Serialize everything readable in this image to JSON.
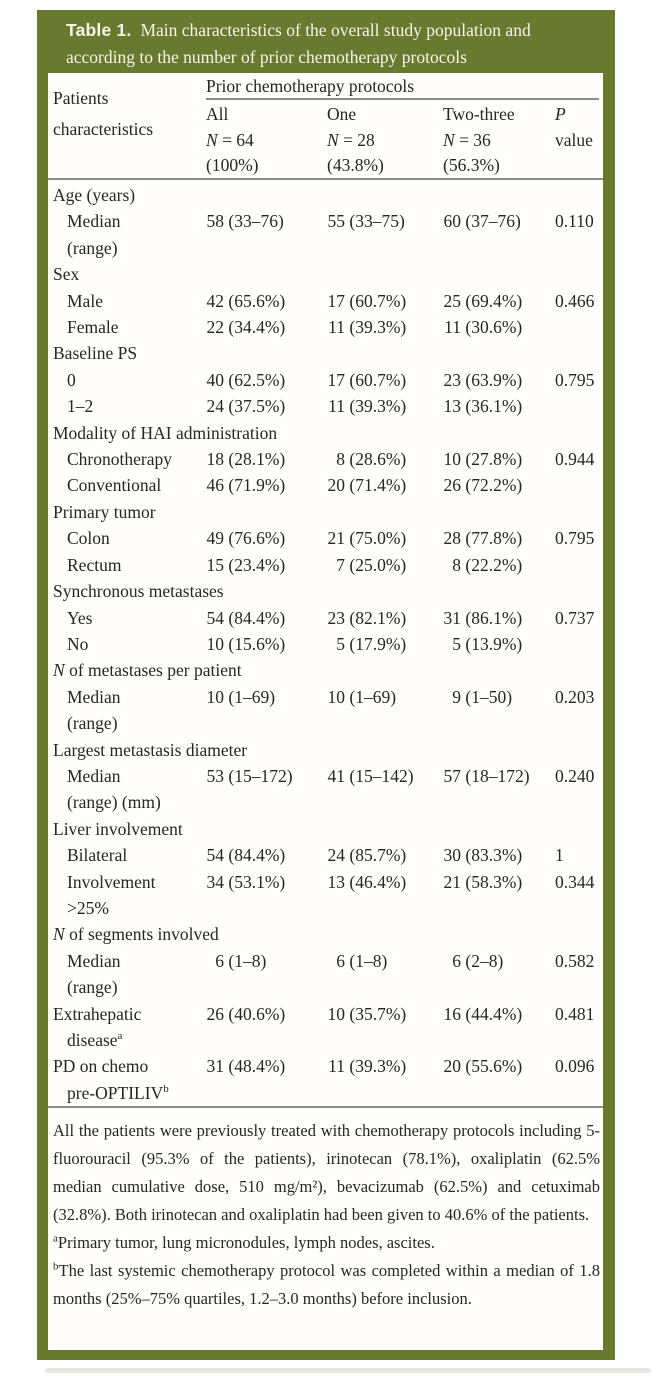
{
  "theme": {
    "header_green": "#6a7930",
    "title_text": "#f7f4e8",
    "rule_gray": "#8a8a8a",
    "body_text": "#262626",
    "artifact_gray": "#e6e6e3"
  },
  "title": {
    "tag": "Table 1.",
    "line1": "Main characteristics of the overall study population and",
    "line2": "according to the number of prior chemotherapy protocols"
  },
  "header": {
    "col1_line1": "Patients",
    "col1_line2": "characteristics",
    "group": "Prior chemotherapy protocols",
    "columns": [
      {
        "key": "all",
        "name": "All",
        "name_italic": false,
        "n_prefix": "N",
        "n_rest": "= 64",
        "pct": "(100%)"
      },
      {
        "key": "one",
        "name": "One",
        "name_italic": false,
        "n_prefix": "N",
        "n_rest": "= 28",
        "pct": "(43.8%)"
      },
      {
        "key": "two-three",
        "name": "Two-three",
        "name_italic": false,
        "n_prefix": "N",
        "n_rest": "= 36",
        "pct": "(56.3%)"
      },
      {
        "key": "p-value",
        "name": "P",
        "name_italic": true,
        "n_prefix": "",
        "n_rest": "value",
        "pct": ""
      }
    ]
  },
  "table": {
    "rows": [
      {
        "type": "section",
        "text": "Age (years)"
      },
      {
        "type": "data",
        "lines": [
          {
            "text": "Median",
            "lvl": 1
          },
          {
            "text": "(range)",
            "lvl": 1
          }
        ],
        "all": "58 (33–76)",
        "one": "55 (33–75)",
        "two_three": "60 (37–76)",
        "p": "0.110"
      },
      {
        "type": "section",
        "text": "Sex"
      },
      {
        "type": "data",
        "lines": [
          {
            "text": "Male",
            "lvl": 1
          }
        ],
        "all": "42 (65.6%)",
        "one": "17 (60.7%)",
        "two_three": "25 (69.4%)",
        "p": "0.466"
      },
      {
        "type": "data",
        "lines": [
          {
            "text": "Female",
            "lvl": 1
          }
        ],
        "all": "22 (34.4%)",
        "one": "11 (39.3%)",
        "two_three": "11 (30.6%)",
        "p": ""
      },
      {
        "type": "section",
        "text": "Baseline PS"
      },
      {
        "type": "data",
        "lines": [
          {
            "text": "0",
            "lvl": 1
          }
        ],
        "all": "40 (62.5%)",
        "one": "17 (60.7%)",
        "two_three": "23 (63.9%)",
        "p": "0.795"
      },
      {
        "type": "data",
        "lines": [
          {
            "text": "1–2",
            "lvl": 1
          }
        ],
        "all": "24 (37.5%)",
        "one": "11 (39.3%)",
        "two_three": "13 (36.1%)",
        "p": ""
      },
      {
        "type": "section",
        "text": "Modality of HAI administration"
      },
      {
        "type": "data",
        "lines": [
          {
            "text": "Chronotherapy",
            "lvl": 1
          }
        ],
        "all": "18 (28.1%)",
        "one": "8 (28.6%)",
        "two_three": "10 (27.8%)",
        "p": "0.944"
      },
      {
        "type": "data",
        "lines": [
          {
            "text": "Conventional",
            "lvl": 1
          }
        ],
        "all": "46 (71.9%)",
        "one": "20 (71.4%)",
        "two_three": "26 (72.2%)",
        "p": ""
      },
      {
        "type": "section",
        "text": "Primary tumor"
      },
      {
        "type": "data",
        "lines": [
          {
            "text": "Colon",
            "lvl": 1
          }
        ],
        "all": "49 (76.6%)",
        "one": "21 (75.0%)",
        "two_three": "28 (77.8%)",
        "p": "0.795"
      },
      {
        "type": "data",
        "lines": [
          {
            "text": "Rectum",
            "lvl": 1
          }
        ],
        "all": "15 (23.4%)",
        "one": "7 (25.0%)",
        "two_three": "8 (22.2%)",
        "p": ""
      },
      {
        "type": "section",
        "text": "Synchronous metastases"
      },
      {
        "type": "data",
        "lines": [
          {
            "text": "Yes",
            "lvl": 1
          }
        ],
        "all": "54 (84.4%)",
        "one": "23 (82.1%)",
        "two_three": "31 (86.1%)",
        "p": "0.737"
      },
      {
        "type": "data",
        "lines": [
          {
            "text": "No",
            "lvl": 1
          }
        ],
        "all": "10 (15.6%)",
        "one": "5 (17.9%)",
        "two_three": "5 (13.9%)",
        "p": ""
      },
      {
        "type": "section",
        "prefix": "N",
        "text": "of metastases per patient"
      },
      {
        "type": "data",
        "lines": [
          {
            "text": "Median",
            "lvl": 1
          },
          {
            "text": "(range)",
            "lvl": 1
          }
        ],
        "all": "10 (1–69)",
        "one": "10 (1–69)",
        "two_three": "9 (1–50)",
        "p": "0.203"
      },
      {
        "type": "section",
        "text": "Largest metastasis diameter"
      },
      {
        "type": "data",
        "lines": [
          {
            "text": "Median",
            "lvl": 1
          },
          {
            "text": "(range) (mm)",
            "lvl": 1
          }
        ],
        "all": "53 (15–172)",
        "one": "41 (15–142)",
        "two_three": "57 (18–172)",
        "p": "0.240"
      },
      {
        "type": "section",
        "text": "Liver involvement"
      },
      {
        "type": "data",
        "lines": [
          {
            "text": "Bilateral",
            "lvl": 1
          }
        ],
        "all": "54 (84.4%)",
        "one": "24 (85.7%)",
        "two_three": "30 (83.3%)",
        "p": "1"
      },
      {
        "type": "data",
        "lines": [
          {
            "text": "Involvement",
            "lvl": 1
          },
          {
            "text": ">25%",
            "lvl": 1
          }
        ],
        "all": "34 (53.1%)",
        "one": "13 (46.4%)",
        "two_three": "21 (58.3%)",
        "p": "0.344"
      },
      {
        "type": "section",
        "prefix": "N",
        "text": "of segments involved"
      },
      {
        "type": "data",
        "lines": [
          {
            "text": "Median",
            "lvl": 1
          },
          {
            "text": "(range)",
            "lvl": 1
          }
        ],
        "all": "6 (1–8)",
        "one": "6 (1–8)",
        "two_three": "6 (2–8)",
        "p": "0.582"
      },
      {
        "type": "data",
        "lines": [
          {
            "text": "Extrahepatic",
            "lvl": 0
          },
          {
            "text": "disease",
            "sup": "a",
            "lvl": 1
          }
        ],
        "all": "26 (40.6%)",
        "one": "10 (35.7%)",
        "two_three": "16 (44.4%)",
        "p": "0.481"
      },
      {
        "type": "data",
        "lines": [
          {
            "text": "PD on chemo",
            "lvl": 0
          },
          {
            "text": "pre-OPTILIV",
            "sup": "b",
            "lvl": 1
          }
        ],
        "all": "31 (48.4%)",
        "one": "11 (39.3%)",
        "two_three": "20 (55.6%)",
        "p": "0.096"
      }
    ]
  },
  "footnotes": [
    {
      "sup": "",
      "text": "All the patients were previously treated with chemotherapy protocols including 5-fluorouracil (95.3% of the patients), irinotecan (78.1%), oxaliplatin (62.5% median cumulative dose, 510 mg/m²), bevacizumab (62.5%) and cetuximab (32.8%). Both irinotecan and oxaliplatin had been given to 40.6% of the patients."
    },
    {
      "sup": "a",
      "text": "Primary tumor, lung micronodules, lymph nodes, ascites."
    },
    {
      "sup": "b",
      "text": "The last systemic chemotherapy protocol was completed within a median of 1.8 months (25%–75% quartiles, 1.2–3.0 months) before inclusion."
    }
  ]
}
